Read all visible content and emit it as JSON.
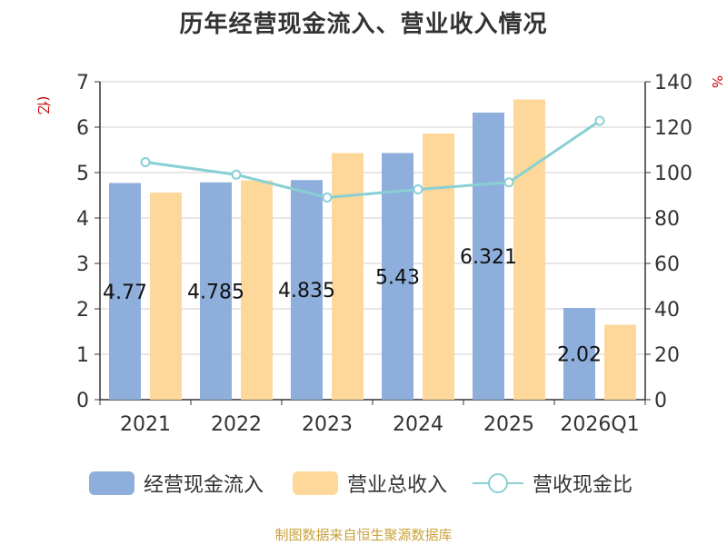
{
  "title": "历年经营现金流入、营业收入情况",
  "source": "制图数据来自恒生聚源数据库",
  "chart_data": {
    "type": "bar",
    "title": "历年经营现金流入、营业收入情况",
    "categories": [
      "2021",
      "2022",
      "2023",
      "2024",
      "2025",
      "2026Q1"
    ],
    "y_left": {
      "unit": "(亿元)",
      "ylim": [
        0,
        7
      ],
      "ticks": [
        0,
        1,
        2,
        3,
        4,
        5,
        6,
        7
      ]
    },
    "y_right": {
      "unit": "%",
      "ylim": [
        0,
        140
      ],
      "ticks": [
        0,
        20,
        40,
        60,
        80,
        100,
        120,
        140
      ]
    },
    "grid": true,
    "legend_position": "bottom",
    "series": [
      {
        "name": "经营现金流入",
        "type": "bar",
        "axis": "left",
        "color": "#8eaedb",
        "values": [
          4.77,
          4.785,
          4.835,
          5.43,
          6.321,
          2.02
        ],
        "labels": [
          "4.77",
          "4.785",
          "4.835",
          "5.43",
          "6.321",
          "2.02"
        ]
      },
      {
        "name": "营业总收入",
        "type": "bar",
        "axis": "left",
        "color": "#fdd89a",
        "values": [
          4.56,
          4.83,
          5.43,
          5.86,
          6.61,
          1.65
        ]
      },
      {
        "name": "营收现金比",
        "type": "line",
        "axis": "right",
        "color": "#88d0d4",
        "values": [
          104.6,
          99.1,
          89.0,
          92.6,
          95.7,
          122.8
        ]
      }
    ]
  }
}
